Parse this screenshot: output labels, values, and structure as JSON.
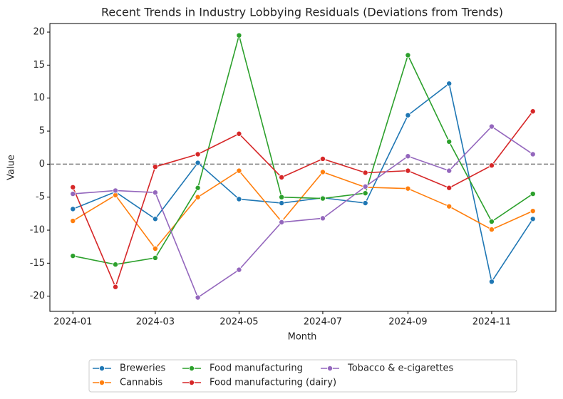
{
  "chart_data": {
    "type": "line",
    "title": "Recent Trends in Industry Lobbying Residuals (Deviations from Trends)",
    "xlabel": "Month",
    "ylabel": "Value",
    "x": [
      "2024-01",
      "2024-02",
      "2024-03",
      "2024-04",
      "2024-05",
      "2024-06",
      "2024-07",
      "2024-08",
      "2024-09",
      "2024-10",
      "2024-11",
      "2024-12"
    ],
    "xticks": [
      "2024-01",
      "2024-03",
      "2024-05",
      "2024-07",
      "2024-09",
      "2024-11"
    ],
    "ylim": [
      -22.3,
      21.3
    ],
    "yticks": [
      -20,
      -15,
      -10,
      -5,
      0,
      5,
      10,
      15,
      20
    ],
    "reference_line": 0,
    "legend": "below",
    "series": [
      {
        "name": "Breweries",
        "color": "#1f77b4",
        "values": [
          -6.8,
          -4.2,
          -8.3,
          0.2,
          -5.3,
          -5.9,
          -5.1,
          -5.9,
          7.4,
          12.2,
          -17.8,
          -8.3
        ]
      },
      {
        "name": "Cannabis",
        "color": "#ff7f0e",
        "values": [
          -8.6,
          -4.7,
          -12.8,
          -5.0,
          -1.0,
          -8.7,
          -1.2,
          -3.5,
          -3.7,
          -6.4,
          -9.9,
          -7.1
        ]
      },
      {
        "name": "Food manufacturing",
        "color": "#2ca02c",
        "values": [
          -13.9,
          -15.2,
          -14.2,
          -3.6,
          19.5,
          -5.0,
          -5.2,
          -4.4,
          16.5,
          3.4,
          -8.7,
          -4.5
        ]
      },
      {
        "name": "Food manufacturing (dairy)",
        "color": "#d62728",
        "values": [
          -3.5,
          -18.6,
          -0.4,
          1.5,
          4.6,
          -2.0,
          0.8,
          -1.3,
          -1.0,
          -3.6,
          -0.2,
          8.0
        ]
      },
      {
        "name": "Tobacco & e-cigarettes",
        "color": "#9467bd",
        "values": [
          -4.5,
          -4.0,
          -4.3,
          -20.2,
          -16.0,
          -8.8,
          -8.2,
          -3.4,
          1.2,
          -1.0,
          5.7,
          1.5
        ]
      }
    ]
  }
}
